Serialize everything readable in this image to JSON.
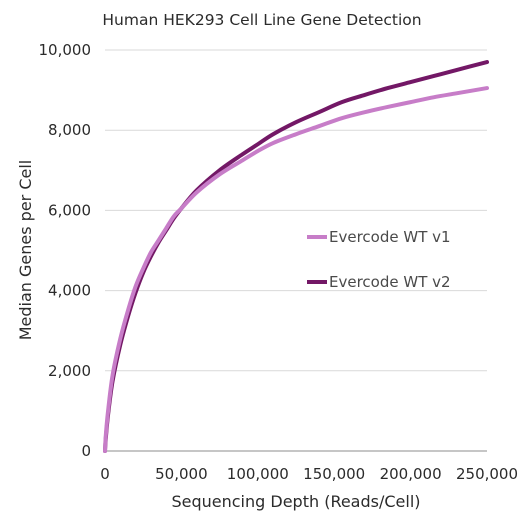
{
  "chart_data": {
    "type": "line",
    "title": "Human HEK293 Cell Line Gene Detection",
    "xlabel": "Sequencing Depth (Reads/Cell)",
    "ylabel": "Median Genes per Cell",
    "xlim": [
      0,
      250000
    ],
    "ylim": [
      0,
      10000
    ],
    "xticks": [
      0,
      50000,
      100000,
      150000,
      200000,
      250000
    ],
    "xtick_labels": [
      "0",
      "50,000",
      "100,000",
      "150,000",
      "200,000",
      "250,000"
    ],
    "yticks": [
      0,
      2000,
      4000,
      6000,
      8000,
      10000
    ],
    "ytick_labels": [
      "0",
      "2,000",
      "4,000",
      "6,000",
      "8,000",
      "10,000"
    ],
    "grid": "horizontal",
    "legend_position": "center-right",
    "series": [
      {
        "name": "Evercode WT v1",
        "color": "#c77dc8",
        "x": [
          0,
          500,
          2000,
          5000,
          10000,
          15000,
          20000,
          25000,
          30000,
          35000,
          40000,
          45000,
          50000,
          60000,
          75000,
          90000,
          100000,
          110000,
          125000,
          140000,
          155000,
          170000,
          185000,
          200000,
          215000,
          230000,
          250000
        ],
        "y": [
          0,
          380,
          1000,
          1900,
          2800,
          3500,
          4100,
          4550,
          4950,
          5250,
          5550,
          5850,
          6050,
          6450,
          6900,
          7250,
          7480,
          7680,
          7900,
          8100,
          8300,
          8450,
          8580,
          8700,
          8820,
          8920,
          9050
        ]
      },
      {
        "name": "Evercode WT v2",
        "color": "#731866",
        "x": [
          0,
          500,
          2000,
          5000,
          10000,
          15000,
          20000,
          25000,
          30000,
          35000,
          40000,
          45000,
          50000,
          60000,
          75000,
          90000,
          100000,
          110000,
          125000,
          140000,
          155000,
          170000,
          185000,
          200000,
          215000,
          230000,
          250000
        ],
        "y": [
          0,
          300,
          900,
          1750,
          2650,
          3350,
          3950,
          4450,
          4850,
          5200,
          5500,
          5800,
          6050,
          6500,
          7000,
          7400,
          7650,
          7900,
          8200,
          8450,
          8700,
          8880,
          9050,
          9200,
          9350,
          9500,
          9700
        ]
      }
    ]
  }
}
